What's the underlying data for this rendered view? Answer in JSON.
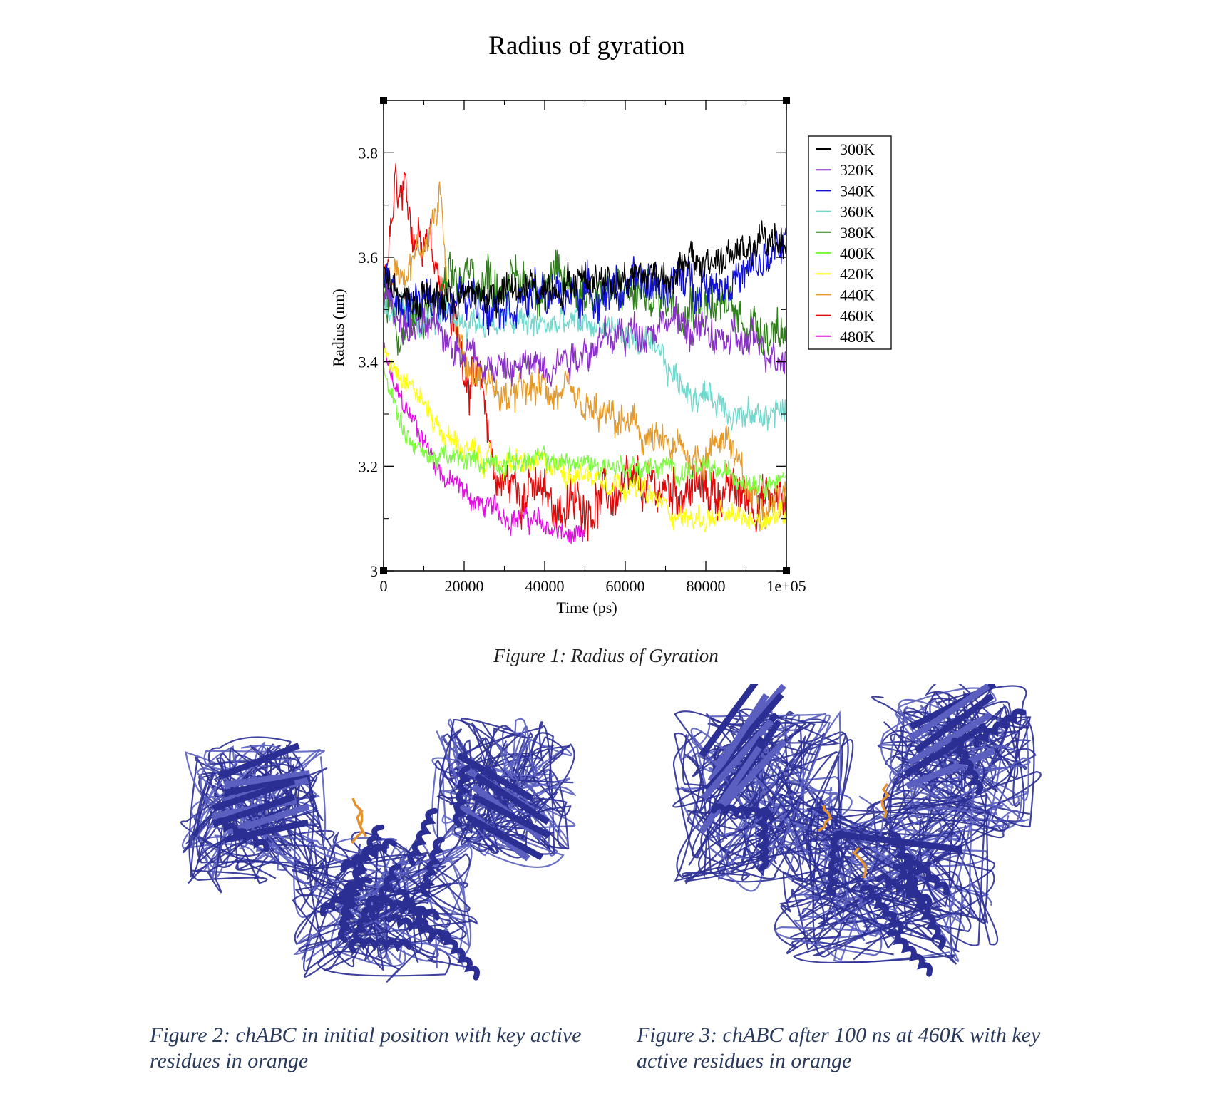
{
  "chart_data": {
    "type": "line",
    "title": "Radius of gyration",
    "xlabel": "Time (ps)",
    "ylabel": "Radius (nm)",
    "xlim": [
      0,
      100000
    ],
    "ylim": [
      3.0,
      3.9
    ],
    "x_ticks": [
      0,
      20000,
      40000,
      60000,
      80000,
      100000
    ],
    "x_tick_labels": [
      "0",
      "20000",
      "40000",
      "60000",
      "80000",
      "1e+05"
    ],
    "y_ticks": [
      3.0,
      3.2,
      3.4,
      3.6,
      3.8
    ],
    "y_tick_labels": [
      "3",
      "3.2",
      "3.4",
      "3.6",
      "3.8"
    ],
    "legend_position": "outside right, top",
    "grid": false,
    "series": [
      {
        "name": "300K",
        "color": "#000000",
        "noise": 0.03,
        "x": [
          0,
          5000,
          15000,
          30000,
          50000,
          70000,
          90000,
          100000
        ],
        "y": [
          3.58,
          3.52,
          3.52,
          3.53,
          3.56,
          3.57,
          3.61,
          3.64
        ]
      },
      {
        "name": "320K",
        "color": "#8b2fc9",
        "noise": 0.03,
        "x": [
          0,
          5000,
          15000,
          30000,
          40000,
          55000,
          70000,
          85000,
          100000
        ],
        "y": [
          3.55,
          3.47,
          3.45,
          3.38,
          3.4,
          3.44,
          3.48,
          3.44,
          3.42
        ]
      },
      {
        "name": "340K",
        "color": "#1010d8",
        "noise": 0.035,
        "x": [
          0,
          5000,
          15000,
          30000,
          50000,
          70000,
          90000,
          100000
        ],
        "y": [
          3.56,
          3.5,
          3.52,
          3.52,
          3.53,
          3.55,
          3.56,
          3.62
        ]
      },
      {
        "name": "360K",
        "color": "#70d8cc",
        "noise": 0.025,
        "x": [
          0,
          5000,
          20000,
          40000,
          55000,
          65000,
          75000,
          85000,
          90000,
          100000
        ],
        "y": [
          3.52,
          3.48,
          3.48,
          3.47,
          3.47,
          3.43,
          3.35,
          3.32,
          3.29,
          3.31
        ]
      },
      {
        "name": "380K",
        "color": "#2f7f18",
        "noise": 0.04,
        "x": [
          0,
          5000,
          20000,
          40000,
          60000,
          80000,
          90000,
          100000
        ],
        "y": [
          3.55,
          3.45,
          3.56,
          3.55,
          3.53,
          3.52,
          3.48,
          3.46
        ]
      },
      {
        "name": "400K",
        "color": "#7cfc3c",
        "noise": 0.018,
        "x": [
          0,
          5000,
          10000,
          20000,
          40000,
          60000,
          80000,
          100000
        ],
        "y": [
          3.4,
          3.27,
          3.22,
          3.21,
          3.21,
          3.2,
          3.19,
          3.17
        ]
      },
      {
        "name": "420K",
        "color": "#ffff10",
        "noise": 0.02,
        "x": [
          0,
          5000,
          15000,
          25000,
          40000,
          60000,
          75000,
          90000,
          100000
        ],
        "y": [
          3.42,
          3.38,
          3.26,
          3.21,
          3.2,
          3.17,
          3.1,
          3.1,
          3.11
        ]
      },
      {
        "name": "440K",
        "color": "#e69a28",
        "noise": 0.03,
        "x": [
          0,
          8000,
          14000,
          16000,
          20000,
          30000,
          40000,
          50000,
          60000,
          70000,
          80000,
          85000,
          90000,
          100000
        ],
        "y": [
          3.55,
          3.6,
          3.7,
          3.55,
          3.4,
          3.33,
          3.35,
          3.3,
          3.28,
          3.23,
          3.22,
          3.27,
          3.15,
          3.13
        ]
      },
      {
        "name": "460K",
        "color": "#e00808",
        "noise": 0.04,
        "x": [
          0,
          3000,
          8000,
          11000,
          16000,
          20000,
          25000,
          28000,
          35000,
          45000,
          60000,
          75000,
          85000,
          100000
        ],
        "y": [
          3.55,
          3.72,
          3.65,
          3.66,
          3.52,
          3.4,
          3.32,
          3.17,
          3.16,
          3.12,
          3.15,
          3.16,
          3.15,
          3.13
        ]
      },
      {
        "name": "480K",
        "color": "#e010e0",
        "noise": 0.02,
        "x": [
          0,
          3000,
          8000,
          15000,
          25000,
          35000,
          42000,
          50000
        ],
        "y": [
          3.42,
          3.34,
          3.28,
          3.18,
          3.12,
          3.1,
          3.08,
          3.05
        ]
      }
    ]
  },
  "captions": {
    "figure1": "Figure 1: Radius of Gyration",
    "figure2": "Figure 2: chABC in initial position with key active residues in orange",
    "figure3": "Figure 3: chABC after 100 ns at 460K with key active residues in orange"
  },
  "colors": {
    "protein": "#2b2f94",
    "protein_light": "#5a5fc0",
    "active_residues": "#e2922e",
    "caption_text": "#2a3a5c"
  }
}
